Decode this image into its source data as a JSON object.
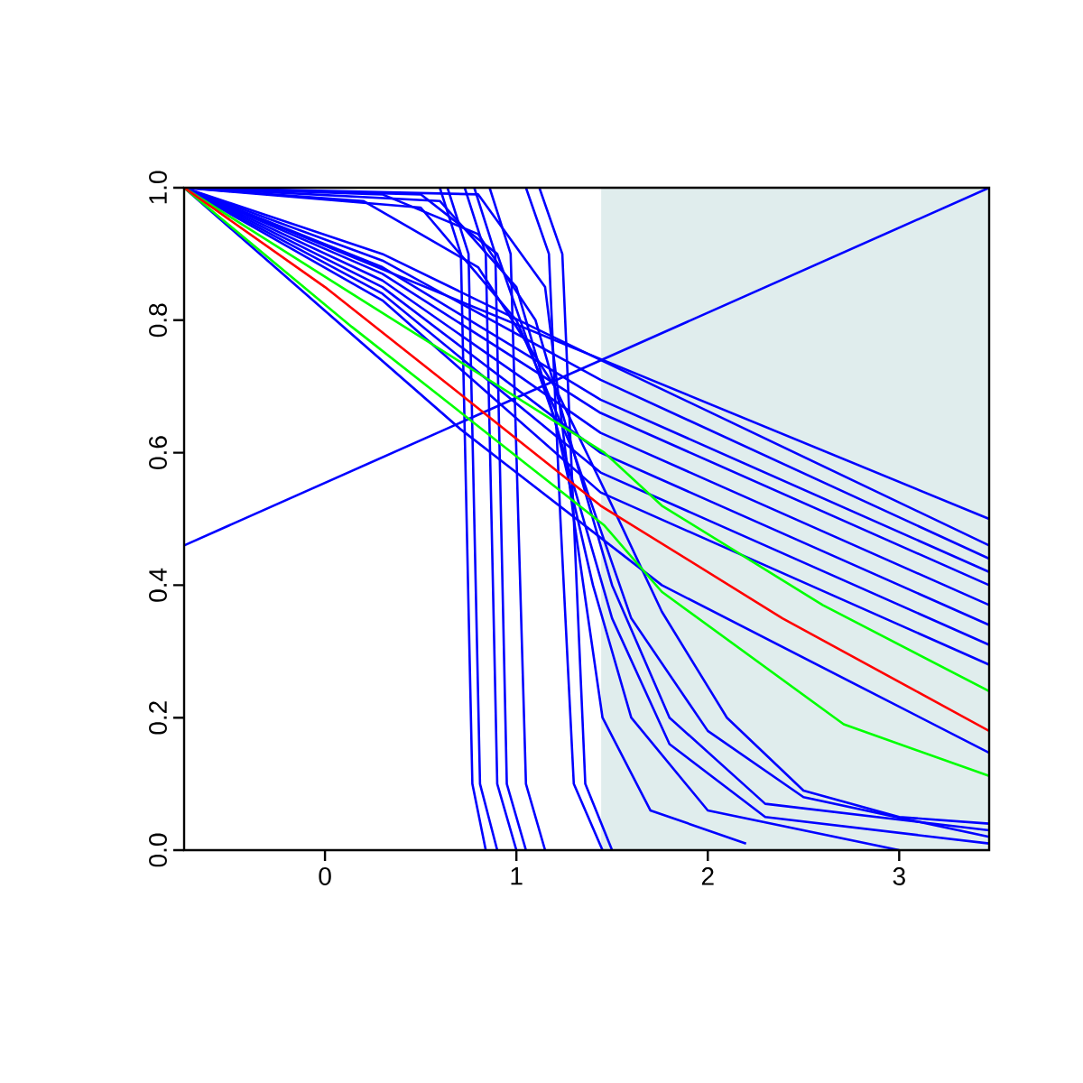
{
  "chart_data": {
    "type": "line",
    "xlim": [
      -0.736,
      3.47
    ],
    "ylim": [
      0,
      1
    ],
    "xticks": [
      0,
      1,
      2,
      3
    ],
    "yticks": [
      {
        "value": 0,
        "label": "0.0"
      },
      {
        "value": 0.2,
        "label": "0.2"
      },
      {
        "value": 0.4,
        "label": "0.4"
      },
      {
        "value": 0.6,
        "label": "0.6"
      },
      {
        "value": 0.8,
        "label": "0.8"
      },
      {
        "value": 1,
        "label": "1.0"
      }
    ],
    "grid": false,
    "marker": "none",
    "line_style": "solid",
    "bands": [
      {
        "axis": "x",
        "from": 1.443,
        "to": 3.47,
        "color": "#e0eded"
      }
    ],
    "series": [
      {
        "color": "#0000ff",
        "x": [
          -0.736,
          3.47
        ],
        "values": [
          0.46,
          1.0
        ]
      },
      {
        "color": "#0000ff",
        "x": [
          -0.736,
          3.47
        ],
        "values": [
          1.0,
          0.5
        ]
      },
      {
        "color": "#0000ff",
        "x": [
          -0.736,
          0.71,
          1.76,
          3.47
        ],
        "values": [
          1.0,
          0.635,
          0.4,
          0.147
        ]
      },
      {
        "color": "#0000ff",
        "x": [
          -0.736,
          0.3,
          1.44,
          3.47
        ],
        "values": [
          1.0,
          0.9,
          0.74,
          0.46
        ]
      },
      {
        "color": "#0000ff",
        "x": [
          -0.736,
          0.3,
          1.44,
          3.47
        ],
        "values": [
          1.0,
          0.89,
          0.71,
          0.44
        ]
      },
      {
        "color": "#0000ff",
        "x": [
          -0.736,
          0.3,
          1.44,
          3.47
        ],
        "values": [
          1.0,
          0.88,
          0.68,
          0.42
        ]
      },
      {
        "color": "#0000ff",
        "x": [
          -0.736,
          0.3,
          1.44,
          3.47
        ],
        "values": [
          1.0,
          0.87,
          0.66,
          0.4
        ]
      },
      {
        "color": "#0000ff",
        "x": [
          -0.736,
          0.3,
          1.44,
          3.47
        ],
        "values": [
          1.0,
          0.86,
          0.63,
          0.37
        ]
      },
      {
        "color": "#0000ff",
        "x": [
          -0.736,
          0.3,
          1.44,
          3.47
        ],
        "values": [
          1.0,
          0.85,
          0.6,
          0.34
        ]
      },
      {
        "color": "#0000ff",
        "x": [
          -0.736,
          0.3,
          1.44,
          3.47
        ],
        "values": [
          1.0,
          0.84,
          0.57,
          0.31
        ]
      },
      {
        "color": "#0000ff",
        "x": [
          -0.736,
          0.3,
          1.44,
          3.47
        ],
        "values": [
          1.0,
          0.83,
          0.54,
          0.28
        ]
      },
      {
        "color": "#0000ff",
        "x": [
          0.6,
          0.71,
          0.74,
          0.77,
          0.84
        ],
        "values": [
          1.0,
          0.9,
          0.5,
          0.1,
          0.0
        ]
      },
      {
        "color": "#0000ff",
        "x": [
          0.64,
          0.75,
          0.78,
          0.81,
          0.9
        ],
        "values": [
          1.0,
          0.9,
          0.5,
          0.1,
          0.0
        ]
      },
      {
        "color": "#0000ff",
        "x": [
          0.73,
          0.84,
          0.87,
          0.9,
          1.0
        ],
        "values": [
          1.0,
          0.9,
          0.5,
          0.1,
          0.0
        ]
      },
      {
        "color": "#0000ff",
        "x": [
          0.78,
          0.89,
          0.92,
          0.95,
          1.05
        ],
        "values": [
          1.0,
          0.9,
          0.5,
          0.1,
          0.0
        ]
      },
      {
        "color": "#0000ff",
        "x": [
          0.86,
          0.97,
          1.01,
          1.05,
          1.15
        ],
        "values": [
          1.0,
          0.9,
          0.5,
          0.1,
          0.0
        ]
      },
      {
        "color": "#0000ff",
        "x": [
          1.05,
          1.17,
          1.23,
          1.3,
          1.45
        ],
        "values": [
          1.0,
          0.9,
          0.5,
          0.1,
          0.0
        ]
      },
      {
        "color": "#0000ff",
        "x": [
          1.12,
          1.24,
          1.3,
          1.36,
          1.5
        ],
        "values": [
          1.0,
          0.9,
          0.5,
          0.1,
          0.0
        ]
      },
      {
        "color": "#0000ff",
        "x": [
          -0.736,
          0.3,
          0.8,
          1.1,
          1.3,
          1.5,
          1.8,
          2.3,
          3.47
        ],
        "values": [
          1.0,
          0.99,
          0.93,
          0.8,
          0.6,
          0.4,
          0.2,
          0.07,
          0.03
        ]
      },
      {
        "color": "#0000ff",
        "x": [
          -0.736,
          0.5,
          0.9,
          1.2,
          1.4,
          1.6,
          2.0,
          3.0
        ],
        "values": [
          1.0,
          0.99,
          0.9,
          0.65,
          0.4,
          0.2,
          0.06,
          0.0
        ]
      },
      {
        "color": "#0000ff",
        "x": [
          -0.736,
          0.6,
          1.0,
          1.3,
          1.5,
          1.8,
          2.3,
          3.47
        ],
        "values": [
          1.0,
          0.98,
          0.85,
          0.55,
          0.35,
          0.16,
          0.05,
          0.01
        ]
      },
      {
        "color": "#0000ff",
        "x": [
          -0.736,
          0.2,
          0.8,
          1.2,
          1.5,
          1.76,
          2.1,
          2.5,
          3.0,
          3.47
        ],
        "values": [
          1.0,
          0.98,
          0.88,
          0.7,
          0.52,
          0.36,
          0.2,
          0.09,
          0.05,
          0.04
        ]
      },
      {
        "color": "#0000ff",
        "x": [
          -0.736,
          0.8,
          1.15,
          1.3,
          1.45,
          1.7,
          2.2
        ],
        "values": [
          1.0,
          0.99,
          0.85,
          0.5,
          0.2,
          0.06,
          0.01
        ]
      },
      {
        "color": "#0000ff",
        "x": [
          -0.736,
          0.5,
          1.0,
          1.3,
          1.6,
          2.0,
          2.5,
          3.47
        ],
        "values": [
          1.0,
          0.97,
          0.8,
          0.6,
          0.35,
          0.18,
          0.08,
          0.02
        ]
      },
      {
        "color": "#00ff00",
        "x": [
          -0.736,
          0.14,
          1.46,
          1.76,
          2.6,
          3.47
        ],
        "values": [
          1.0,
          0.84,
          0.6,
          0.52,
          0.37,
          0.24
        ]
      },
      {
        "color": "#00ff00",
        "x": [
          -0.736,
          0.14,
          1.46,
          1.76,
          2.71,
          3.47
        ],
        "values": [
          1.0,
          0.79,
          0.49,
          0.39,
          0.19,
          0.112
        ]
      },
      {
        "color": "#ff0000",
        "x": [
          -0.736,
          0.0,
          0.7,
          1.44,
          2.39,
          3.47
        ],
        "values": [
          1.0,
          0.85,
          0.69,
          0.52,
          0.35,
          0.18
        ]
      }
    ]
  }
}
